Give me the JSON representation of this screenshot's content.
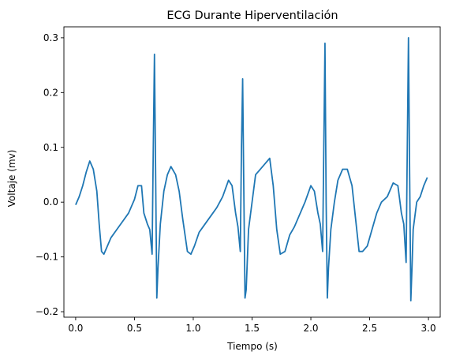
{
  "chart_data": {
    "type": "line",
    "title": "ECG Durante Hiperventilación",
    "xlabel": "Tiempo (s)",
    "ylabel": "Voltaje (mv)",
    "xlim": [
      -0.1,
      3.1
    ],
    "ylim": [
      -0.21,
      0.32
    ],
    "grid": false,
    "color": "#1f77b4",
    "x_ticks": [
      0.0,
      0.5,
      1.0,
      1.5,
      2.0,
      2.5,
      3.0
    ],
    "x_tick_labels": [
      "0.0",
      "0.5",
      "1.0",
      "1.5",
      "2.0",
      "2.5",
      "3.0"
    ],
    "y_ticks": [
      -0.2,
      -0.1,
      0.0,
      0.1,
      0.2,
      0.3
    ],
    "y_tick_labels": [
      "−0.2",
      "−0.1",
      "0.0",
      "0.1",
      "0.2",
      "0.3"
    ],
    "series": [
      {
        "x": [
          0.0,
          0.03,
          0.06,
          0.09,
          0.12,
          0.15,
          0.18,
          0.2,
          0.22,
          0.24,
          0.26,
          0.3,
          0.35,
          0.4,
          0.45,
          0.5,
          0.53,
          0.56,
          0.58,
          0.61,
          0.63,
          0.65,
          0.66,
          0.67,
          0.68,
          0.69,
          0.7,
          0.72,
          0.75,
          0.78,
          0.81,
          0.85,
          0.88,
          0.91,
          0.95,
          0.98,
          1.01,
          1.05,
          1.1,
          1.15,
          1.2,
          1.25,
          1.3,
          1.33,
          1.36,
          1.38,
          1.4,
          1.41,
          1.42,
          1.43,
          1.44,
          1.45,
          1.47,
          1.5,
          1.53,
          1.57,
          1.61,
          1.65,
          1.68,
          1.71,
          1.74,
          1.78,
          1.82,
          1.86,
          1.9,
          1.95,
          2.0,
          2.03,
          2.06,
          2.08,
          2.1,
          2.11,
          2.12,
          2.13,
          2.14,
          2.15,
          2.17,
          2.2,
          2.23,
          2.27,
          2.31,
          2.35,
          2.38,
          2.41,
          2.44,
          2.48,
          2.52,
          2.56,
          2.6,
          2.65,
          2.7,
          2.74,
          2.77,
          2.79,
          2.81,
          2.82,
          2.83,
          2.84,
          2.85,
          2.86,
          2.87,
          2.9,
          2.93,
          2.96,
          2.99
        ],
        "y": [
          -0.005,
          0.01,
          0.03,
          0.055,
          0.075,
          0.06,
          0.02,
          -0.04,
          -0.09,
          -0.095,
          -0.085,
          -0.065,
          -0.05,
          -0.035,
          -0.02,
          0.005,
          0.03,
          0.03,
          -0.02,
          -0.04,
          -0.05,
          -0.095,
          0.1,
          0.27,
          0.05,
          -0.175,
          -0.12,
          -0.04,
          0.02,
          0.05,
          0.065,
          0.05,
          0.02,
          -0.03,
          -0.09,
          -0.095,
          -0.08,
          -0.055,
          -0.04,
          -0.025,
          -0.01,
          0.01,
          0.04,
          0.03,
          -0.02,
          -0.045,
          -0.09,
          0.1,
          0.225,
          0.02,
          -0.175,
          -0.16,
          -0.05,
          0.0,
          0.05,
          0.06,
          0.07,
          0.08,
          0.03,
          -0.05,
          -0.095,
          -0.09,
          -0.06,
          -0.045,
          -0.025,
          0.0,
          0.03,
          0.02,
          -0.02,
          -0.04,
          -0.09,
          0.1,
          0.29,
          0.0,
          -0.175,
          -0.12,
          -0.05,
          0.0,
          0.04,
          0.06,
          0.06,
          0.03,
          -0.03,
          -0.09,
          -0.09,
          -0.08,
          -0.05,
          -0.02,
          0.0,
          0.01,
          0.035,
          0.03,
          -0.02,
          -0.04,
          -0.11,
          0.1,
          0.3,
          0.05,
          -0.18,
          -0.12,
          -0.05,
          0.0,
          0.01,
          0.03,
          0.045
        ]
      }
    ]
  }
}
